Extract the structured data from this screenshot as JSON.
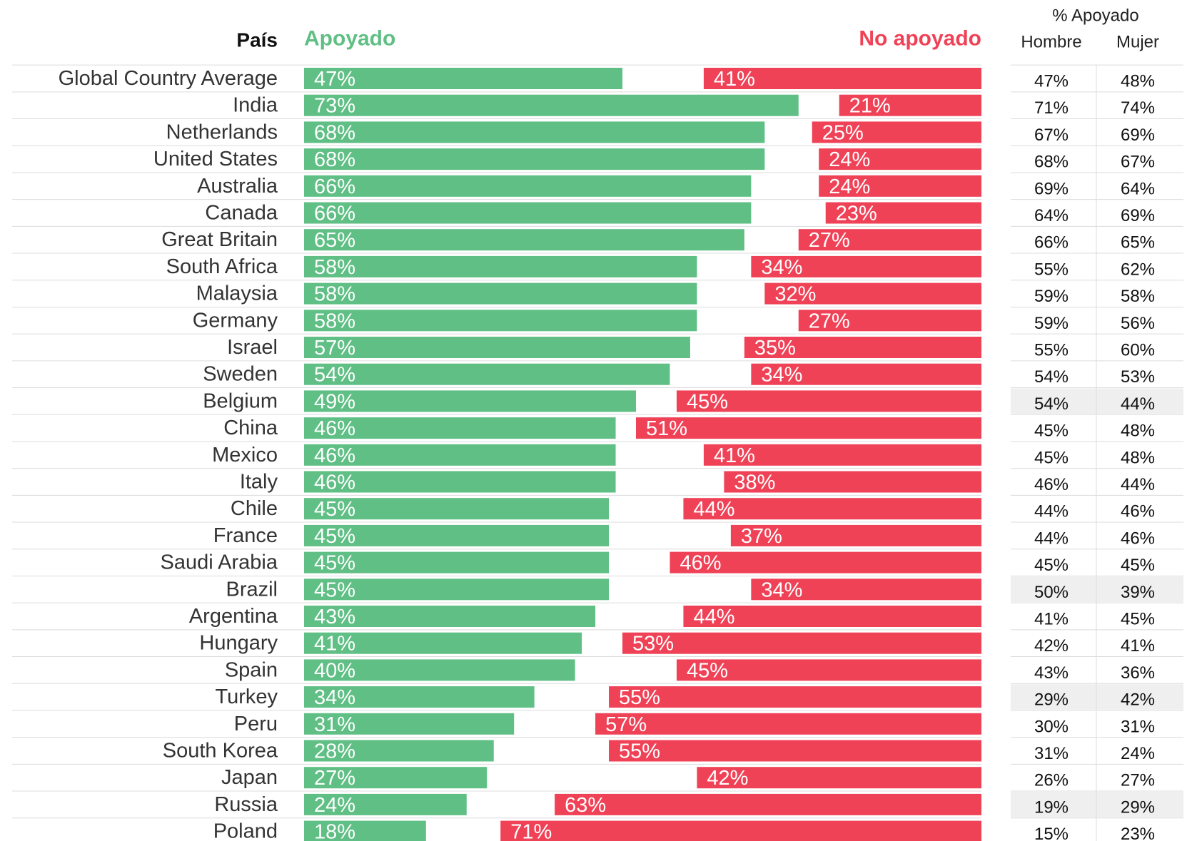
{
  "chart_data": {
    "type": "bar",
    "orientation": "horizontal",
    "category_header": "País",
    "categories": [
      "Global Country Average",
      "India",
      "Netherlands",
      "United States",
      "Australia",
      "Canada",
      "Great Britain",
      "South Africa",
      "Malaysia",
      "Germany",
      "Israel",
      "Sweden",
      "Belgium",
      "China",
      "Mexico",
      "Italy",
      "Chile",
      "France",
      "Saudi Arabia",
      "Brazil",
      "Argentina",
      "Hungary",
      "Spain",
      "Turkey",
      "Peru",
      "South Korea",
      "Japan",
      "Russia",
      "Poland"
    ],
    "xlim": [
      0,
      100
    ],
    "series": [
      {
        "name": "Apoyado",
        "color": "#5fbf84",
        "anchor": "left",
        "values": [
          47,
          73,
          68,
          68,
          66,
          66,
          65,
          58,
          58,
          58,
          57,
          54,
          49,
          46,
          46,
          46,
          45,
          45,
          45,
          45,
          43,
          41,
          40,
          34,
          31,
          28,
          27,
          24,
          18
        ],
        "value_labels": [
          "47%",
          "73%",
          "68%",
          "68%",
          "66%",
          "66%",
          "65%",
          "58%",
          "58%",
          "58%",
          "57%",
          "54%",
          "49%",
          "46%",
          "46%",
          "46%",
          "45%",
          "45%",
          "45%",
          "45%",
          "43%",
          "41%",
          "40%",
          "34%",
          "31%",
          "28%",
          "27%",
          "24%",
          "18%"
        ]
      },
      {
        "name": "No apoyado",
        "color": "#f04257",
        "anchor": "right",
        "values": [
          41,
          21,
          25,
          24,
          24,
          23,
          27,
          34,
          32,
          27,
          35,
          34,
          45,
          51,
          41,
          38,
          44,
          37,
          46,
          34,
          44,
          53,
          45,
          55,
          57,
          55,
          42,
          63,
          71
        ],
        "value_labels": [
          "41%",
          "21%",
          "25%",
          "24%",
          "24%",
          "23%",
          "27%",
          "34%",
          "32%",
          "27%",
          "35%",
          "34%",
          "45%",
          "51%",
          "41%",
          "38%",
          "44%",
          "37%",
          "46%",
          "34%",
          "44%",
          "53%",
          "45%",
          "55%",
          "57%",
          "55%",
          "42%",
          "63%",
          "71%"
        ]
      }
    ],
    "table": {
      "title": "% Apoyado",
      "highlight_color": "#efefef",
      "highlight": [
        false,
        false,
        false,
        false,
        false,
        false,
        false,
        false,
        false,
        false,
        false,
        false,
        true,
        false,
        false,
        false,
        false,
        false,
        false,
        true,
        false,
        false,
        false,
        true,
        false,
        false,
        false,
        true,
        false
      ],
      "columns": [
        {
          "name": "Hombre",
          "values": [
            47,
            71,
            67,
            68,
            69,
            64,
            66,
            55,
            59,
            59,
            55,
            54,
            54,
            45,
            45,
            46,
            44,
            44,
            45,
            50,
            41,
            42,
            43,
            29,
            30,
            31,
            26,
            19,
            15
          ],
          "value_labels": [
            "47%",
            "71%",
            "67%",
            "68%",
            "69%",
            "64%",
            "66%",
            "55%",
            "59%",
            "59%",
            "55%",
            "54%",
            "54%",
            "45%",
            "45%",
            "46%",
            "44%",
            "44%",
            "45%",
            "50%",
            "41%",
            "42%",
            "43%",
            "29%",
            "30%",
            "31%",
            "26%",
            "19%",
            "15%"
          ]
        },
        {
          "name": "Mujer",
          "values": [
            48,
            74,
            69,
            67,
            64,
            69,
            65,
            62,
            58,
            56,
            60,
            53,
            44,
            48,
            48,
            44,
            46,
            46,
            45,
            39,
            45,
            41,
            36,
            42,
            31,
            24,
            27,
            29,
            23
          ],
          "value_labels": [
            "48%",
            "74%",
            "69%",
            "67%",
            "64%",
            "69%",
            "65%",
            "62%",
            "58%",
            "56%",
            "60%",
            "53%",
            "44%",
            "48%",
            "48%",
            "44%",
            "46%",
            "46%",
            "45%",
            "39%",
            "45%",
            "41%",
            "36%",
            "42%",
            "31%",
            "24%",
            "27%",
            "29%",
            "23%"
          ]
        }
      ]
    }
  }
}
